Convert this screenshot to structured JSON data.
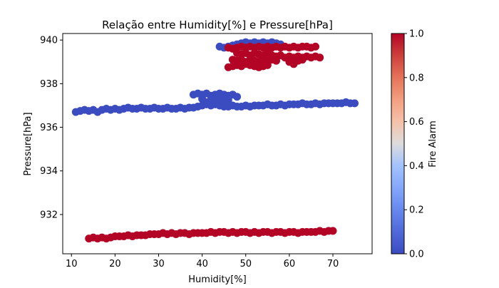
{
  "chart_data": {
    "type": "scatter",
    "title": "Relação entre Humidity[%] e Pressure[hPa]",
    "xlabel": "Humidity[%]",
    "ylabel": "Pressure[hPa]",
    "xlim": [
      8,
      79
    ],
    "ylim": [
      930.2,
      940.3
    ],
    "x_ticks": [
      10,
      20,
      30,
      40,
      50,
      60,
      70
    ],
    "y_ticks": [
      932,
      934,
      936,
      938,
      940
    ],
    "grid": false,
    "colorbar": {
      "label": "Fire Alarm",
      "range": [
        0,
        1
      ],
      "ticks": [
        "0.0",
        "0.2",
        "0.4",
        "0.6",
        "0.8",
        "1.0"
      ],
      "colormap": "coolwarm",
      "low_color": "#3b4cc0",
      "high_color": "#b40426"
    },
    "series": [
      {
        "fire_alarm": 0,
        "color": "#3b4cc0",
        "points": [
          [
            11,
            936.7
          ],
          [
            12,
            936.75
          ],
          [
            13,
            936.8
          ],
          [
            14,
            936.75
          ],
          [
            15,
            936.8
          ],
          [
            16,
            936.7
          ],
          [
            17,
            936.8
          ],
          [
            18,
            936.85
          ],
          [
            19,
            936.8
          ],
          [
            20,
            936.85
          ],
          [
            21,
            936.8
          ],
          [
            22,
            936.85
          ],
          [
            23,
            936.9
          ],
          [
            24,
            936.85
          ],
          [
            25,
            936.85
          ],
          [
            26,
            936.9
          ],
          [
            27,
            936.85
          ],
          [
            28,
            936.85
          ],
          [
            29,
            936.9
          ],
          [
            30,
            936.85
          ],
          [
            31,
            936.85
          ],
          [
            32,
            936.9
          ],
          [
            33,
            936.85
          ],
          [
            34,
            936.85
          ],
          [
            35,
            936.9
          ],
          [
            36,
            936.85
          ],
          [
            37,
            936.9
          ],
          [
            38,
            936.9
          ],
          [
            39,
            936.95
          ],
          [
            40,
            937.0
          ],
          [
            41,
            937.05
          ],
          [
            42,
            937.0
          ],
          [
            43,
            937.05
          ],
          [
            44,
            937.0
          ],
          [
            45,
            936.95
          ],
          [
            46,
            936.95
          ],
          [
            47,
            937.0
          ],
          [
            48,
            936.95
          ],
          [
            49,
            936.95
          ],
          [
            50,
            937.0
          ],
          [
            51,
            936.95
          ],
          [
            52,
            937.0
          ],
          [
            53,
            937.0
          ],
          [
            54,
            937.0
          ],
          [
            55,
            937.05
          ],
          [
            56,
            937.0
          ],
          [
            57,
            937.0
          ],
          [
            58,
            937.05
          ],
          [
            59,
            937.0
          ],
          [
            60,
            937.05
          ],
          [
            61,
            937.05
          ],
          [
            62,
            937.05
          ],
          [
            63,
            937.1
          ],
          [
            64,
            937.05
          ],
          [
            65,
            937.05
          ],
          [
            66,
            937.1
          ],
          [
            67,
            937.05
          ],
          [
            68,
            937.1
          ],
          [
            69,
            937.1
          ],
          [
            70,
            937.1
          ],
          [
            71,
            937.1
          ],
          [
            72,
            937.1
          ],
          [
            73,
            937.15
          ],
          [
            74,
            937.1
          ],
          [
            75,
            937.1
          ],
          [
            38,
            937.5
          ],
          [
            39,
            937.55
          ],
          [
            40,
            937.5
          ],
          [
            41,
            937.55
          ],
          [
            42,
            937.45
          ],
          [
            43,
            937.5
          ],
          [
            44,
            937.55
          ],
          [
            45,
            937.5
          ],
          [
            46,
            937.45
          ],
          [
            47,
            937.5
          ],
          [
            48,
            937.4
          ],
          [
            40,
            937.3
          ],
          [
            42,
            937.25
          ],
          [
            44,
            937.3
          ],
          [
            46,
            937.25
          ],
          [
            41,
            937.15
          ],
          [
            43,
            937.2
          ],
          [
            45,
            937.15
          ],
          [
            44,
            939.7
          ],
          [
            45,
            939.65
          ],
          [
            46,
            939.7
          ],
          [
            47,
            939.75
          ],
          [
            48,
            939.8
          ],
          [
            49,
            939.85
          ],
          [
            50,
            939.9
          ],
          [
            51,
            939.85
          ],
          [
            52,
            939.9
          ],
          [
            53,
            939.85
          ],
          [
            54,
            939.9
          ],
          [
            55,
            939.85
          ],
          [
            56,
            939.9
          ],
          [
            57,
            939.85
          ],
          [
            58,
            939.8
          ]
        ]
      },
      {
        "fire_alarm": 1,
        "color": "#b40426",
        "points": [
          [
            14,
            930.9
          ],
          [
            15,
            930.95
          ],
          [
            16,
            930.9
          ],
          [
            17,
            930.95
          ],
          [
            18,
            930.9
          ],
          [
            19,
            930.95
          ],
          [
            20,
            931.0
          ],
          [
            21,
            931.0
          ],
          [
            22,
            931.0
          ],
          [
            23,
            931.05
          ],
          [
            24,
            931.0
          ],
          [
            25,
            931.05
          ],
          [
            26,
            931.05
          ],
          [
            27,
            931.05
          ],
          [
            28,
            931.1
          ],
          [
            29,
            931.1
          ],
          [
            30,
            931.1
          ],
          [
            31,
            931.15
          ],
          [
            32,
            931.1
          ],
          [
            33,
            931.15
          ],
          [
            34,
            931.1
          ],
          [
            35,
            931.15
          ],
          [
            36,
            931.15
          ],
          [
            37,
            931.1
          ],
          [
            38,
            931.15
          ],
          [
            39,
            931.15
          ],
          [
            40,
            931.15
          ],
          [
            41,
            931.15
          ],
          [
            42,
            931.2
          ],
          [
            43,
            931.15
          ],
          [
            44,
            931.2
          ],
          [
            45,
            931.2
          ],
          [
            46,
            931.15
          ],
          [
            47,
            931.2
          ],
          [
            48,
            931.15
          ],
          [
            49,
            931.2
          ],
          [
            50,
            931.2
          ],
          [
            51,
            931.15
          ],
          [
            52,
            931.2
          ],
          [
            53,
            931.15
          ],
          [
            54,
            931.2
          ],
          [
            55,
            931.2
          ],
          [
            56,
            931.15
          ],
          [
            57,
            931.2
          ],
          [
            58,
            931.2
          ],
          [
            59,
            931.15
          ],
          [
            60,
            931.2
          ],
          [
            61,
            931.2
          ],
          [
            62,
            931.15
          ],
          [
            63,
            931.2
          ],
          [
            64,
            931.2
          ],
          [
            65,
            931.2
          ],
          [
            66,
            931.2
          ],
          [
            67,
            931.25
          ],
          [
            68,
            931.2
          ],
          [
            69,
            931.25
          ],
          [
            70,
            931.25
          ],
          [
            46,
            939.65
          ],
          [
            47,
            939.6
          ],
          [
            48,
            939.65
          ],
          [
            49,
            939.7
          ],
          [
            50,
            939.65
          ],
          [
            51,
            939.7
          ],
          [
            52,
            939.65
          ],
          [
            53,
            939.7
          ],
          [
            54,
            939.65
          ],
          [
            55,
            939.7
          ],
          [
            56,
            939.65
          ],
          [
            57,
            939.7
          ],
          [
            58,
            939.65
          ],
          [
            59,
            939.7
          ],
          [
            60,
            939.65
          ],
          [
            61,
            939.7
          ],
          [
            62,
            939.65
          ],
          [
            63,
            939.7
          ],
          [
            64,
            939.7
          ],
          [
            65,
            939.65
          ],
          [
            66,
            939.7
          ],
          [
            48,
            939.4
          ],
          [
            49,
            939.35
          ],
          [
            50,
            939.4
          ],
          [
            51,
            939.3
          ],
          [
            52,
            939.4
          ],
          [
            53,
            939.35
          ],
          [
            54,
            939.3
          ],
          [
            55,
            939.4
          ],
          [
            56,
            939.3
          ],
          [
            57,
            939.25
          ],
          [
            58,
            939.3
          ],
          [
            59,
            939.2
          ],
          [
            60,
            939.25
          ],
          [
            61,
            939.2
          ],
          [
            62,
            939.25
          ],
          [
            63,
            939.2
          ],
          [
            64,
            939.25
          ],
          [
            65,
            939.2
          ],
          [
            66,
            939.25
          ],
          [
            67,
            939.2
          ],
          [
            46,
            938.75
          ],
          [
            47,
            938.8
          ],
          [
            48,
            938.85
          ],
          [
            49,
            938.8
          ],
          [
            50,
            938.9
          ],
          [
            51,
            938.85
          ],
          [
            52,
            938.8
          ],
          [
            53,
            938.75
          ],
          [
            54,
            938.8
          ],
          [
            55,
            938.85
          ],
          [
            47,
            939.1
          ],
          [
            48,
            939.05
          ],
          [
            49,
            939.1
          ],
          [
            50,
            939.0
          ],
          [
            51,
            939.1
          ],
          [
            52,
            939.05
          ],
          [
            53,
            939.0
          ],
          [
            54,
            939.1
          ],
          [
            55,
            939.05
          ],
          [
            56,
            939.1
          ],
          [
            57,
            939.05
          ],
          [
            61,
            938.9
          ],
          [
            62,
            939.05
          ],
          [
            63,
            939.1
          ],
          [
            60,
            939.0
          ]
        ]
      }
    ]
  }
}
